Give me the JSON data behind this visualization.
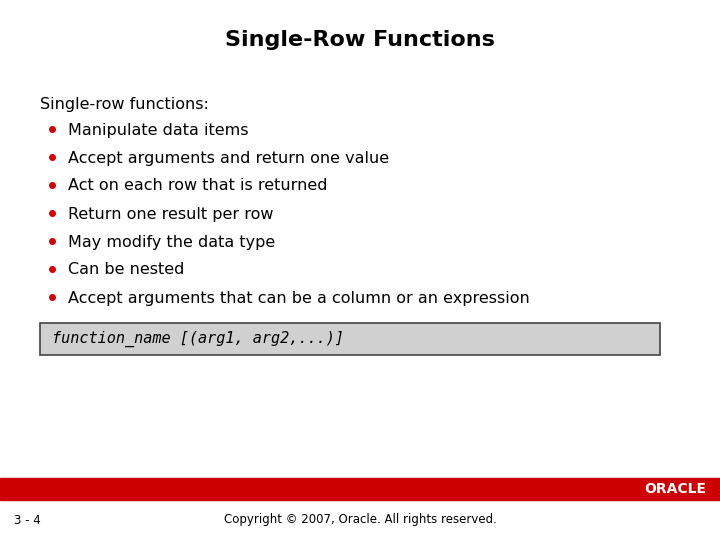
{
  "title": "Single-Row Functions",
  "title_fontsize": 16,
  "title_fontweight": "bold",
  "intro_text": "Single-row functions:",
  "bullet_items": [
    "Manipulate data items",
    "Accept arguments and return one value",
    "Act on each row that is returned",
    "Return one result per row",
    "May modify the data type",
    "Can be nested",
    "Accept arguments that can be a column or an expression"
  ],
  "code_text": "function_name [(arg1, arg2,...)]",
  "code_bg": "#d0d0d0",
  "bullet_color": "#cc0000",
  "text_color": "#000000",
  "bg_color": "#ffffff",
  "footer_bar_color": "#cc0000",
  "footer_text": "Copyright © 2007, Oracle. All rights reserved.",
  "slide_number": "3 - 4",
  "oracle_text": "ORACLE",
  "body_fontsize": 11.5,
  "intro_fontsize": 11.5,
  "code_fontsize": 11,
  "footer_fontsize": 8.5
}
